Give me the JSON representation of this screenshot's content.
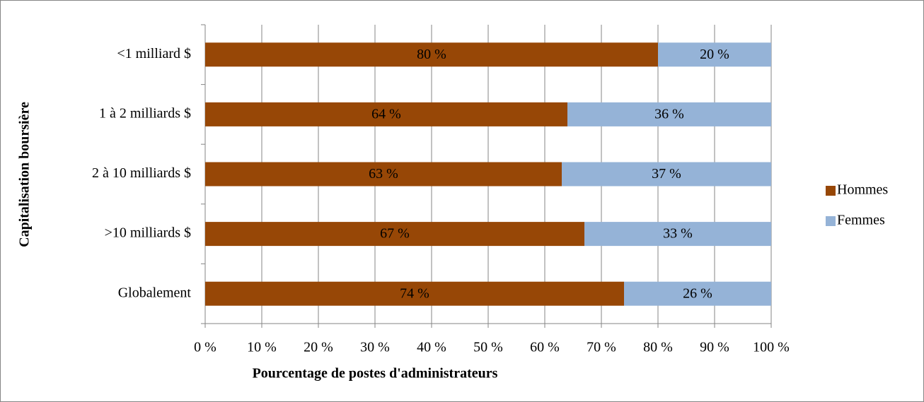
{
  "chart_data": {
    "type": "stacked-bar-horizontal",
    "categories": [
      "<1 milliard $",
      "1 à 2 milliards $",
      "2 à 10 milliards $",
      ">10 milliards $",
      "Globalement"
    ],
    "series": [
      {
        "name": "Hommes",
        "color": "#974706",
        "values": [
          80,
          64,
          63,
          67,
          74
        ],
        "value_labels": [
          "80 %",
          "64 %",
          "63 %",
          "67 %",
          "74 %"
        ]
      },
      {
        "name": "Femmes",
        "color": "#95b3d7",
        "values": [
          20,
          36,
          37,
          33,
          26
        ],
        "value_labels": [
          "20 %",
          "36 %",
          "37 %",
          "33 %",
          "26 %"
        ]
      }
    ],
    "xlabel": "Pourcentage de postes d'administrateurs",
    "ylabel": "Capitalisation boursière",
    "xlim": [
      0,
      100
    ],
    "xticks": [
      {
        "value": 0,
        "label": "0 %"
      },
      {
        "value": 10,
        "label": "10 %"
      },
      {
        "value": 20,
        "label": "20 %"
      },
      {
        "value": 30,
        "label": "30 %"
      },
      {
        "value": 40,
        "label": "40 %"
      },
      {
        "value": 50,
        "label": "50 %"
      },
      {
        "value": 60,
        "label": "60 %"
      },
      {
        "value": 70,
        "label": "70 %"
      },
      {
        "value": 80,
        "label": "80 %"
      },
      {
        "value": 90,
        "label": "90 %"
      },
      {
        "value": 100,
        "label": "100 %"
      }
    ],
    "grid": true,
    "legend": "right"
  }
}
